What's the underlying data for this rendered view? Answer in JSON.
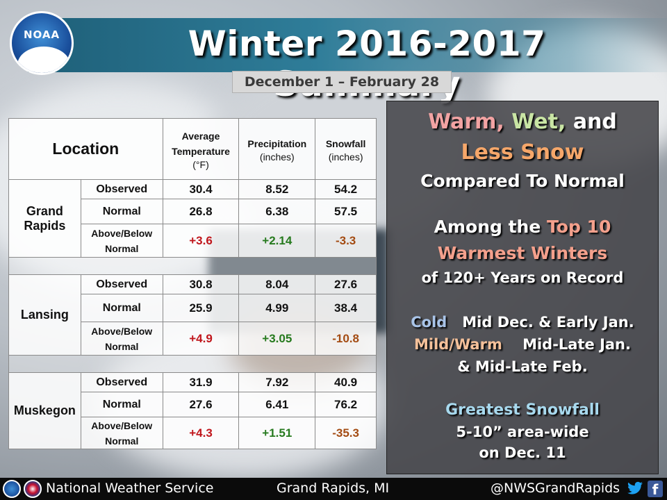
{
  "header": {
    "title": "Winter 2016-2017 Summary",
    "subtitle": "December 1 – February 28",
    "logo_text": "NOAA"
  },
  "table": {
    "headers": {
      "location": "Location",
      "avg_temp_line1": "Average",
      "avg_temp_line2": "Temperature",
      "avg_temp_unit": "(°F)",
      "precip": "Precipitation",
      "precip_unit": "(inches)",
      "snow": "Snowfall",
      "snow_unit": "(inches)"
    },
    "row_labels": {
      "observed": "Observed",
      "normal": "Normal",
      "above_below_1": "Above/Below",
      "above_below_2": "Normal"
    },
    "locations": [
      {
        "name_line1": "Grand",
        "name_line2": "Rapids",
        "observed": [
          "30.4",
          "8.52",
          "54.2"
        ],
        "normal": [
          "26.8",
          "6.38",
          "57.5"
        ],
        "departure": [
          "+3.6",
          "+2.14",
          "-3.3"
        ]
      },
      {
        "name_line1": "Lansing",
        "name_line2": "",
        "observed": [
          "30.8",
          "8.04",
          "27.6"
        ],
        "normal": [
          "25.9",
          "4.99",
          "38.4"
        ],
        "departure": [
          "+4.9",
          "+3.05",
          "-10.8"
        ]
      },
      {
        "name_line1": "Muskegon",
        "name_line2": "",
        "observed": [
          "31.9",
          "7.92",
          "40.9"
        ],
        "normal": [
          "27.6",
          "6.41",
          "76.2"
        ],
        "departure": [
          "+4.3",
          "+1.51",
          "-35.3"
        ]
      }
    ],
    "colors": {
      "temp_departure": "#c0161c",
      "precip_departure": "#267a1e",
      "snow_departure": "#a34b12"
    }
  },
  "panel": {
    "warm": "Warm,",
    "wet": "Wet,",
    "and": "and",
    "less_snow": "Less Snow",
    "compared": "Compared To Normal",
    "among_the": "Among the",
    "top10": "Top 10",
    "warmest": "Warmest Winters",
    "of_years": "of 120+ Years on Record",
    "cold_label": "Cold",
    "cold_text": "Mid Dec. & Early Jan.",
    "mild_label": "Mild/Warm",
    "mild_text": "Mid-Late Jan.",
    "mild_text2": "& Mid-Late Feb.",
    "greatest": "Greatest Snowfall",
    "greatest_line2": "5-10” area-wide",
    "greatest_line3": "on Dec. 11"
  },
  "footer": {
    "left": "National Weather Service",
    "middle": "Grand Rapids, MI",
    "right": "@NWSGrandRapids",
    "facebook_glyph": "f"
  }
}
